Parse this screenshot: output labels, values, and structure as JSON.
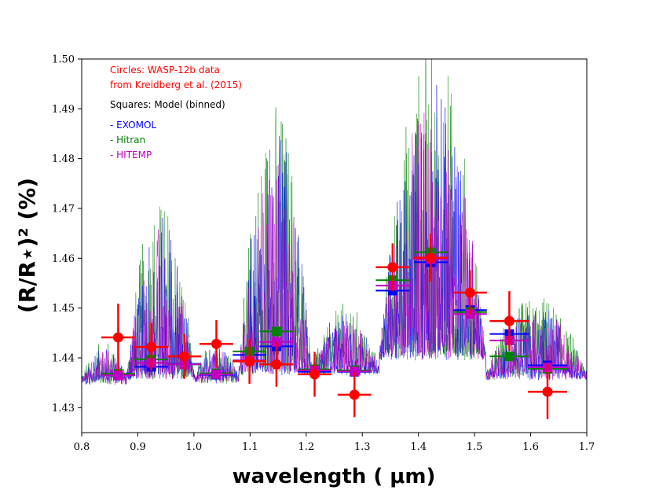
{
  "chart_data": {
    "type": "scatter",
    "title": "",
    "xlabel": "wavelength ( μm)",
    "ylabel": "(R/R⋆)² (%)",
    "xlim": [
      0.8,
      1.7
    ],
    "ylim": [
      1.425,
      1.5
    ],
    "xticks": [
      "0.8",
      "0.9",
      "1.0",
      "1.1",
      "1.2",
      "1.3",
      "1.4",
      "1.5",
      "1.6",
      "1.7"
    ],
    "yticks": [
      "1.43",
      "1.44",
      "1.45",
      "1.46",
      "1.47",
      "1.48",
      "1.49",
      "1.50"
    ],
    "annotations": {
      "circles_line1": "Circles: WASP-12b data",
      "circles_line2": "from Kreidberg et al. (2015)",
      "squares": "Squares: Model (binned)",
      "exomol": "- EXOMOL",
      "hitran": "- Hitran",
      "hitemp": "- HITEMP"
    },
    "colors": {
      "data": "#ff0000",
      "exomol": "#0000ff",
      "hitran": "#008000",
      "hitemp": "#c000c0"
    },
    "observed": {
      "name": "WASP-12b data",
      "x": [
        0.865,
        0.924,
        0.983,
        1.04,
        1.099,
        1.147,
        1.215,
        1.286,
        1.354,
        1.422,
        1.492,
        1.562,
        1.63
      ],
      "y": [
        1.4441,
        1.4422,
        1.4403,
        1.4428,
        1.4393,
        1.4387,
        1.4367,
        1.4326,
        1.4582,
        1.4601,
        1.4531,
        1.4474,
        1.4332
      ],
      "xerr": [
        0.03,
        0.03,
        0.03,
        0.03,
        0.03,
        0.03,
        0.03,
        0.03,
        0.03,
        0.03,
        0.03,
        0.035,
        0.035
      ],
      "yerr": [
        0.0068,
        0.0048,
        0.0045,
        0.0048,
        0.0045,
        0.0045,
        0.0045,
        0.0045,
        0.0048,
        0.0048,
        0.0045,
        0.006,
        0.0055
      ]
    },
    "model_binned": [
      {
        "name": "EXOMOL",
        "x": [
          0.865,
          0.924,
          0.983,
          1.04,
          1.099,
          1.147,
          1.215,
          1.286,
          1.354,
          1.422,
          1.492,
          1.562,
          1.63
        ],
        "y": [
          1.4365,
          1.4382,
          1.4388,
          1.4366,
          1.4406,
          1.4423,
          1.4372,
          1.4372,
          1.4535,
          1.4592,
          1.4496,
          1.4448,
          1.4385
        ]
      },
      {
        "name": "Hitran",
        "x": [
          0.865,
          0.924,
          0.983,
          1.04,
          1.099,
          1.147,
          1.215,
          1.286,
          1.354,
          1.422,
          1.492,
          1.562,
          1.63
        ],
        "y": [
          1.4368,
          1.4397,
          1.4387,
          1.4369,
          1.4413,
          1.4453,
          1.4377,
          1.4375,
          1.4556,
          1.4612,
          1.4492,
          1.4403,
          1.4378
        ]
      },
      {
        "name": "HITEMP",
        "x": [
          0.865,
          0.924,
          0.983,
          1.04,
          1.099,
          1.147,
          1.215,
          1.286,
          1.354,
          1.422,
          1.492,
          1.562,
          1.63
        ],
        "y": [
          1.4365,
          1.439,
          1.4387,
          1.4367,
          1.4395,
          1.4432,
          1.4375,
          1.4373,
          1.4545,
          1.4598,
          1.4488,
          1.4435,
          1.4381
        ]
      }
    ],
    "spectrum_regions": [
      {
        "x": [
          0.8,
          0.88
        ],
        "baseline": 1.4345,
        "peak": 1.442
      },
      {
        "x": [
          0.88,
          1.0
        ],
        "baseline": 1.4355,
        "peak": 1.471
      },
      {
        "x": [
          1.0,
          1.08
        ],
        "baseline": 1.4348,
        "peak": 1.442
      },
      {
        "x": [
          1.08,
          1.21
        ],
        "baseline": 1.4365,
        "peak": 1.49
      },
      {
        "x": [
          1.21,
          1.33
        ],
        "baseline": 1.4365,
        "peak": 1.449
      },
      {
        "x": [
          1.33,
          1.52
        ],
        "baseline": 1.4395,
        "peak": 1.5
      },
      {
        "x": [
          1.52,
          1.7
        ],
        "baseline": 1.4355,
        "peak": 1.451
      }
    ]
  }
}
